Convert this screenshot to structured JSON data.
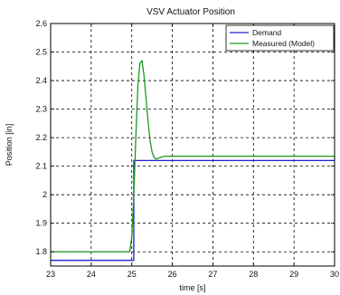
{
  "chart_data": {
    "type": "line",
    "title": "VSV Actuator Position",
    "xlabel": "time [s]",
    "ylabel": "Position [in]",
    "xlim": [
      23,
      30
    ],
    "ylim": [
      1.75,
      2.6
    ],
    "xticks": [
      23,
      24,
      25,
      26,
      27,
      28,
      29,
      30
    ],
    "yticks": [
      1.8,
      1.9,
      2,
      2.1,
      2.2,
      2.3,
      2.4,
      2.5,
      2.6
    ],
    "xtick_labels": [
      "23",
      "24",
      "25",
      "26",
      "27",
      "28",
      "29",
      "30"
    ],
    "ytick_labels": [
      "1.8",
      "1.9",
      "2",
      "2.1",
      "2.2",
      "2.3",
      "2.4",
      "2.5",
      "2.6"
    ],
    "grid": true,
    "legend_position": "top-right",
    "series": [
      {
        "name": "Demand",
        "color": "#1f1fd0",
        "x": [
          23,
          25.05,
          25.05,
          30
        ],
        "y": [
          1.77,
          1.77,
          2.12,
          2.12
        ]
      },
      {
        "name": "Measured (Model)",
        "color": "#1a9a1a",
        "x": [
          23,
          24.95,
          25.0,
          25.05,
          25.1,
          25.15,
          25.2,
          25.25,
          25.3,
          25.35,
          25.4,
          25.45,
          25.5,
          25.55,
          25.6,
          25.7,
          25.8,
          26.0,
          27.0,
          30
        ],
        "y": [
          1.8,
          1.8,
          1.85,
          2.0,
          2.2,
          2.38,
          2.46,
          2.47,
          2.42,
          2.34,
          2.26,
          2.19,
          2.15,
          2.13,
          2.125,
          2.13,
          2.135,
          2.135,
          2.135,
          2.135
        ]
      }
    ]
  }
}
